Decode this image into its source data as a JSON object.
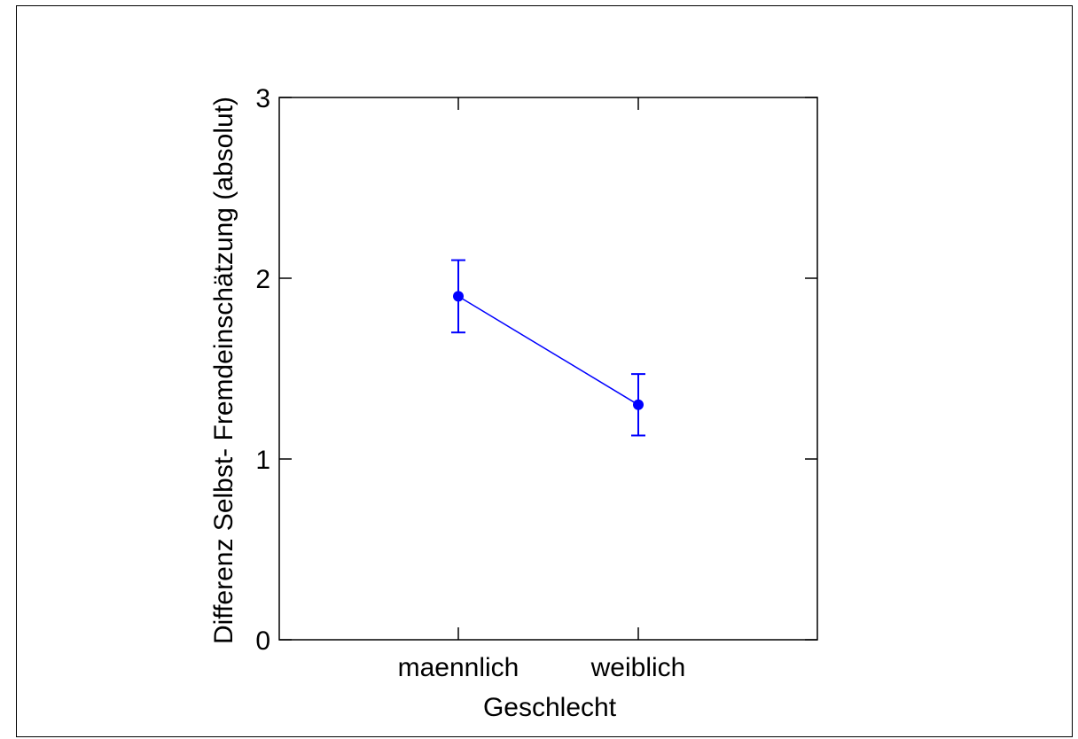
{
  "chart_data": {
    "type": "line",
    "title": "",
    "xlabel": "Geschlecht",
    "ylabel": "Differenz Selbst- Fremdeinschätzung (absolut)",
    "categories": [
      "maennlich",
      "weiblich"
    ],
    "series": [
      {
        "values": [
          1.9,
          1.3
        ],
        "error_low": [
          1.7,
          1.13
        ],
        "error_high": [
          2.1,
          1.47
        ],
        "color": "#0000ff"
      }
    ],
    "ylim": [
      0,
      3
    ],
    "yticks": [
      "0",
      "1",
      "2",
      "3"
    ],
    "grid": false,
    "legend": "none"
  }
}
